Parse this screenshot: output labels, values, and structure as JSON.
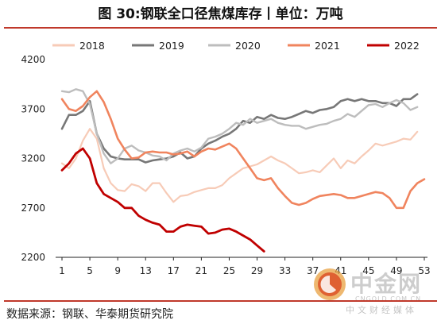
{
  "title": "图 30:钢联全口径焦煤库存丨单位：万吨",
  "source": "数据来源：钢联、华泰期货研究院",
  "watermark": {
    "name": "中金网",
    "domain": "CNGOLD.COM.CN",
    "slogan": "中文财经媒体"
  },
  "chart_data": {
    "type": "line",
    "x_ticks": [
      1,
      5,
      9,
      13,
      17,
      21,
      25,
      29,
      33,
      37,
      41,
      45,
      49,
      53
    ],
    "xlim": [
      1,
      53
    ],
    "y_ticks": [
      2200,
      2700,
      3200,
      3700,
      4200
    ],
    "ylim": [
      2200,
      4200
    ],
    "grid": false,
    "legend_position": "top",
    "series": [
      {
        "name": "2018",
        "color": "#f7cbb7",
        "width": 2.2,
        "x": [
          1,
          2,
          3,
          4,
          5,
          6,
          7,
          8,
          9,
          10,
          11,
          12,
          13,
          14,
          15,
          16,
          17,
          18,
          19,
          20,
          21,
          22,
          23,
          24,
          25,
          26,
          27,
          28,
          29,
          30,
          31,
          32,
          33,
          34,
          35,
          36,
          37,
          38,
          39,
          40,
          41,
          42,
          43,
          44,
          45,
          46,
          47,
          48,
          49,
          50,
          51,
          52
        ],
        "values": [
          3150,
          3100,
          3200,
          3380,
          3500,
          3400,
          3100,
          2950,
          2880,
          2870,
          2940,
          2920,
          2870,
          2950,
          2950,
          2850,
          2760,
          2820,
          2830,
          2860,
          2880,
          2900,
          2900,
          2930,
          3000,
          3050,
          3100,
          3120,
          3140,
          3180,
          3220,
          3180,
          3150,
          3100,
          3050,
          3060,
          3080,
          3060,
          3130,
          3200,
          3100,
          3180,
          3150,
          3220,
          3280,
          3350,
          3330,
          3350,
          3370,
          3400,
          3390,
          3470
        ]
      },
      {
        "name": "2019",
        "color": "#777777",
        "width": 2.6,
        "x": [
          1,
          2,
          3,
          4,
          5,
          6,
          7,
          8,
          9,
          10,
          11,
          12,
          13,
          14,
          15,
          16,
          17,
          18,
          19,
          20,
          21,
          22,
          23,
          24,
          25,
          26,
          27,
          28,
          29,
          30,
          31,
          32,
          33,
          34,
          35,
          36,
          37,
          38,
          39,
          40,
          41,
          42,
          43,
          44,
          45,
          46,
          47,
          48,
          49,
          50,
          51,
          52
        ],
        "values": [
          3500,
          3640,
          3640,
          3680,
          3780,
          3450,
          3300,
          3220,
          3200,
          3190,
          3190,
          3190,
          3160,
          3180,
          3190,
          3200,
          3220,
          3260,
          3200,
          3220,
          3300,
          3350,
          3380,
          3420,
          3450,
          3500,
          3580,
          3560,
          3620,
          3600,
          3640,
          3610,
          3600,
          3620,
          3650,
          3680,
          3660,
          3690,
          3700,
          3720,
          3780,
          3800,
          3780,
          3800,
          3780,
          3780,
          3760,
          3760,
          3730,
          3800,
          3800,
          3850
        ]
      },
      {
        "name": "2020",
        "color": "#bdbdbd",
        "width": 2.4,
        "x": [
          1,
          2,
          3,
          4,
          5,
          6,
          7,
          8,
          9,
          10,
          11,
          12,
          13,
          14,
          15,
          16,
          17,
          18,
          19,
          20,
          21,
          22,
          23,
          24,
          25,
          26,
          27,
          28,
          29,
          30,
          31,
          32,
          33,
          34,
          35,
          36,
          37,
          38,
          39,
          40,
          41,
          42,
          43,
          44,
          45,
          46,
          47,
          48,
          49,
          50,
          51,
          52
        ],
        "values": [
          3880,
          3870,
          3900,
          3880,
          3750,
          3450,
          3250,
          3150,
          3200,
          3300,
          3330,
          3280,
          3260,
          3230,
          3220,
          3180,
          3250,
          3280,
          3300,
          3270,
          3310,
          3400,
          3420,
          3450,
          3500,
          3560,
          3540,
          3600,
          3560,
          3580,
          3600,
          3560,
          3540,
          3530,
          3530,
          3500,
          3520,
          3540,
          3550,
          3580,
          3600,
          3650,
          3620,
          3680,
          3740,
          3750,
          3720,
          3760,
          3790,
          3760,
          3690,
          3720
        ]
      },
      {
        "name": "2021",
        "color": "#f0845e",
        "width": 2.6,
        "x": [
          1,
          2,
          3,
          4,
          5,
          6,
          7,
          8,
          9,
          10,
          11,
          12,
          13,
          14,
          15,
          16,
          17,
          18,
          19,
          20,
          21,
          22,
          23,
          24,
          25,
          26,
          27,
          28,
          29,
          30,
          31,
          32,
          33,
          34,
          35,
          36,
          37,
          38,
          39,
          40,
          41,
          42,
          43,
          44,
          45,
          46,
          47,
          48,
          49,
          50,
          51,
          52,
          53
        ],
        "values": [
          3800,
          3700,
          3680,
          3730,
          3820,
          3880,
          3770,
          3600,
          3400,
          3290,
          3200,
          3210,
          3260,
          3270,
          3260,
          3260,
          3240,
          3250,
          3270,
          3220,
          3270,
          3300,
          3290,
          3320,
          3350,
          3300,
          3200,
          3100,
          3000,
          2980,
          3000,
          2900,
          2820,
          2750,
          2730,
          2750,
          2790,
          2820,
          2830,
          2840,
          2830,
          2800,
          2800,
          2820,
          2840,
          2860,
          2850,
          2800,
          2700,
          2700,
          2870,
          2950,
          2990
        ]
      },
      {
        "name": "2022",
        "color": "#c00000",
        "width": 2.8,
        "x": [
          1,
          2,
          3,
          4,
          5,
          6,
          7,
          8,
          9,
          10,
          11,
          12,
          13,
          14,
          15,
          16,
          17,
          18,
          19,
          20,
          21,
          22,
          23,
          24,
          25,
          26,
          27,
          28,
          29,
          30
        ],
        "values": [
          3080,
          3150,
          3250,
          3300,
          3200,
          2950,
          2840,
          2800,
          2760,
          2700,
          2700,
          2620,
          2580,
          2550,
          2530,
          2460,
          2460,
          2510,
          2530,
          2520,
          2510,
          2440,
          2450,
          2480,
          2490,
          2460,
          2420,
          2380,
          2320,
          2260
        ]
      }
    ]
  }
}
